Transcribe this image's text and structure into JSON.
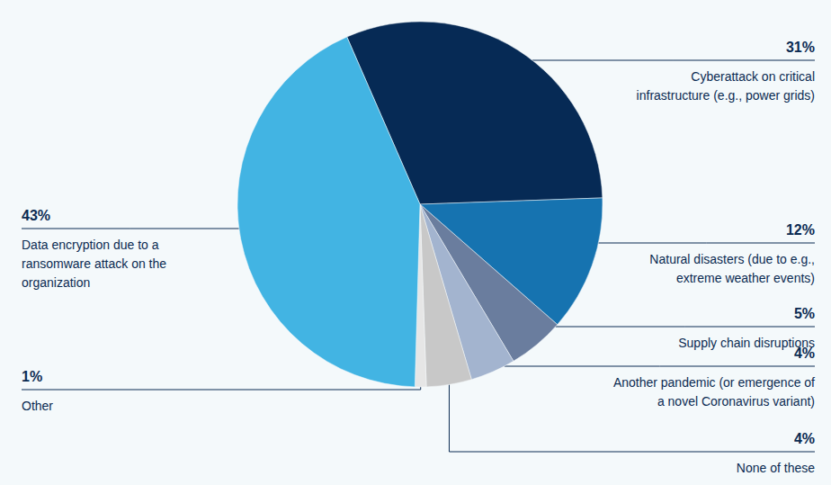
{
  "chart_data": {
    "type": "pie",
    "categories": [
      "Cyberattack on critical\ninfrastructure (e.g., power grids)",
      "Natural disasters (due to e.g.,\nextreme weather events)",
      "Supply chain disruptions",
      "Another pandemic (or emergence of\na novel Coronavirus variant)",
      "None of these",
      "Other",
      "Data encryption due to a\nransomware attack on the\norganization"
    ],
    "values": [
      31,
      12,
      5,
      4,
      4,
      1,
      43
    ],
    "value_labels": [
      "31%",
      "12%",
      "5%",
      "4%",
      "4%",
      "1%",
      "43%"
    ],
    "colors": [
      "#062a55",
      "#1673b0",
      "#6a7d9e",
      "#a3b4cf",
      "#c8c8c8",
      "#e6e6e6",
      "#42b4e3"
    ],
    "data_labels": true
  }
}
